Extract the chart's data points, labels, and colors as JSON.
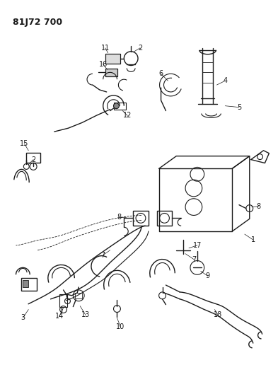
{
  "title": "81J72 700",
  "bg_color": "#ffffff",
  "line_color": "#1a1a1a",
  "label_fontsize": 7.0,
  "fig_width": 3.93,
  "fig_height": 5.33,
  "dpi": 100
}
